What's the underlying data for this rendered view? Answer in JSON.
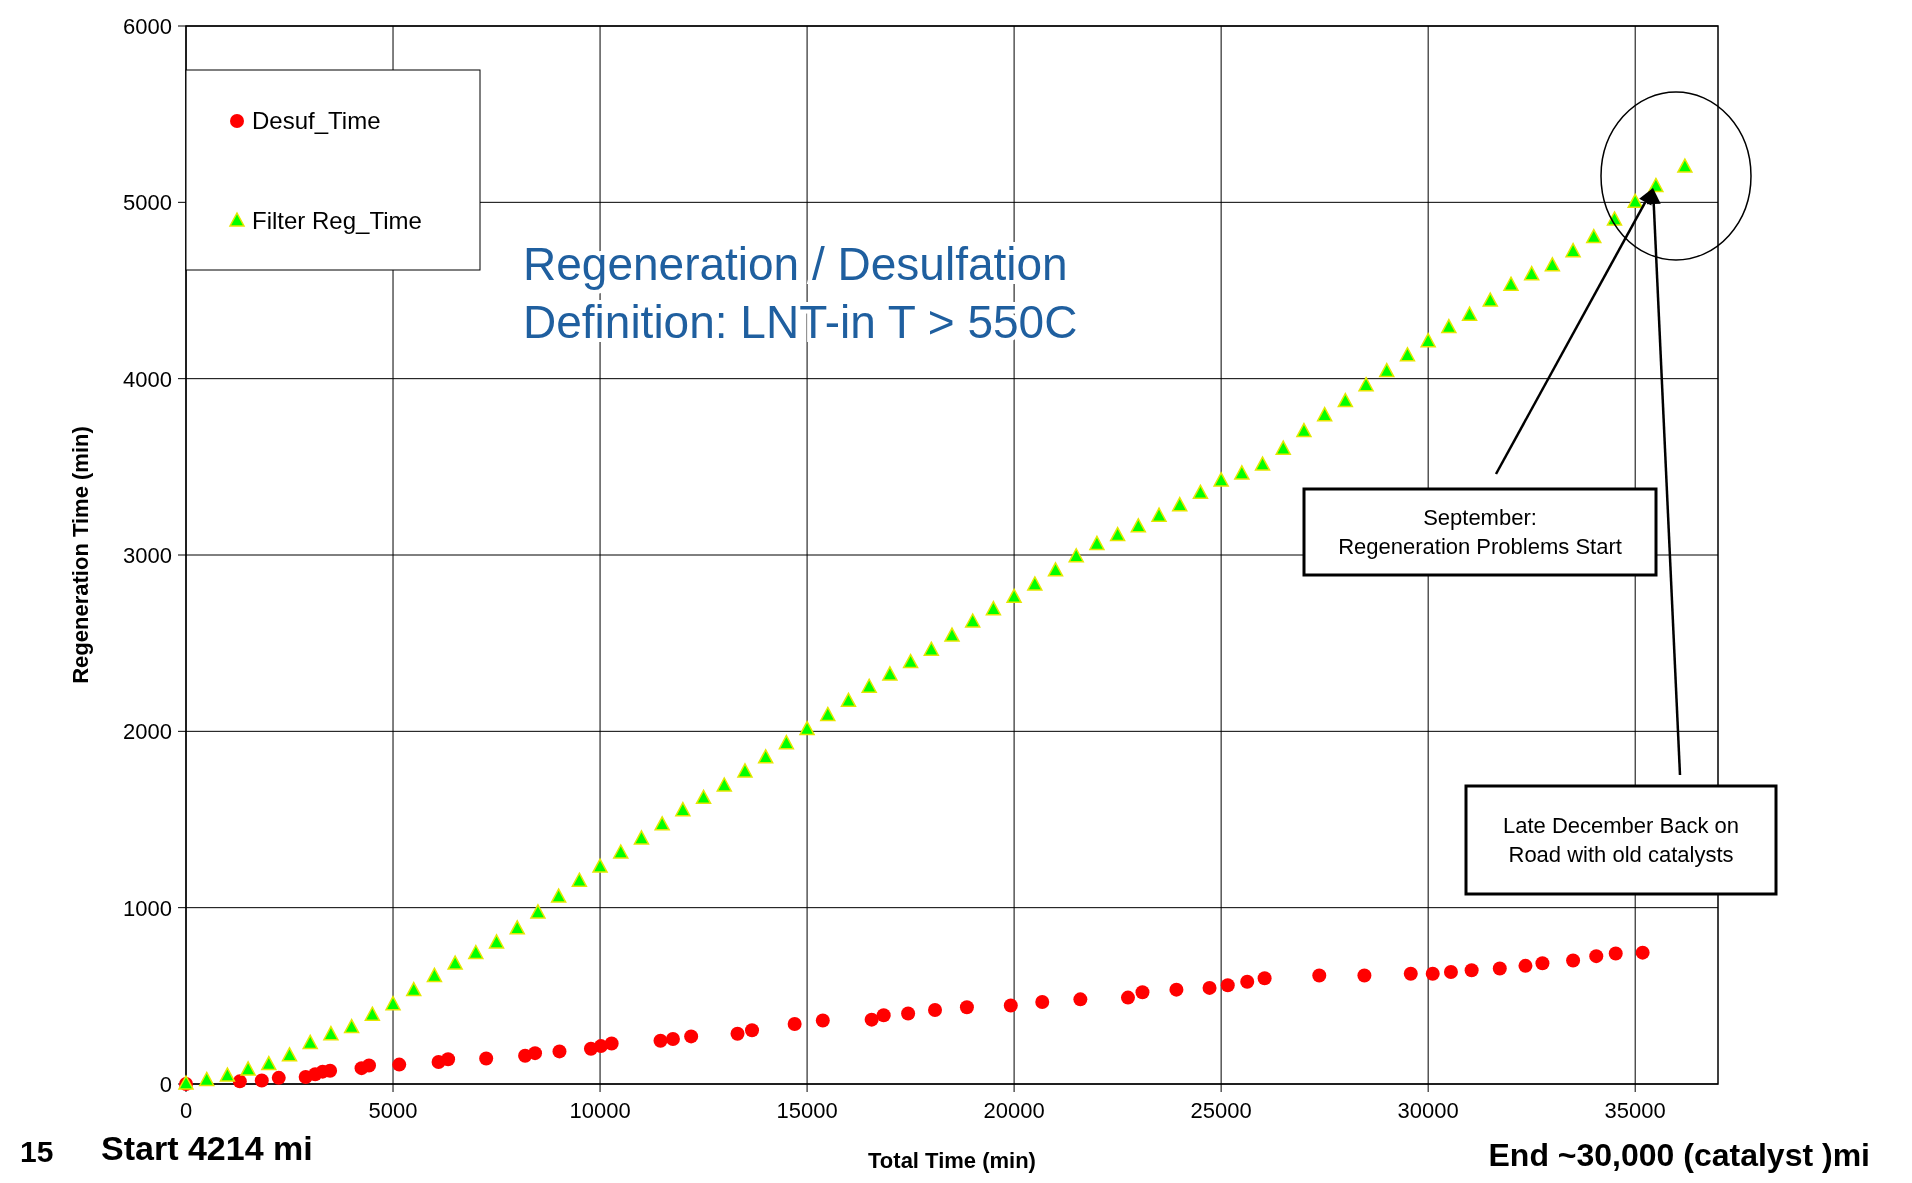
{
  "chart_data": {
    "type": "scatter",
    "xlabel": "Total Time (min)",
    "ylabel": "Regeneration Time (min)",
    "xlim": [
      0,
      37000
    ],
    "ylim": [
      0,
      6000
    ],
    "xticks": [
      0,
      5000,
      10000,
      15000,
      20000,
      25000,
      30000,
      35000
    ],
    "yticks": [
      0,
      1000,
      2000,
      3000,
      4000,
      5000,
      6000
    ],
    "grid": true,
    "legend": "top left",
    "series": [
      {
        "name": "Desuf_Time",
        "color": "#ff0000",
        "marker": "circle",
        "x": [
          0,
          1300,
          1830,
          2240,
          2890,
          3120,
          3300,
          3480,
          4240,
          4420,
          5150,
          6100,
          6330,
          7250,
          8190,
          8430,
          9020,
          9780,
          10020,
          10280,
          11460,
          11760,
          12200,
          13320,
          13670,
          14700,
          15380,
          16560,
          16850,
          17440,
          18090,
          18860,
          19920,
          20680,
          21600,
          22750,
          23100,
          23920,
          24720,
          25160,
          25630,
          26050,
          27370,
          28460,
          29580,
          30110,
          30550,
          31050,
          31730,
          32350,
          32760,
          33500,
          34060,
          34530,
          35180
        ],
        "values": [
          0,
          15,
          20,
          35,
          40,
          55,
          70,
          75,
          90,
          105,
          110,
          125,
          140,
          145,
          160,
          175,
          185,
          200,
          215,
          230,
          245,
          255,
          270,
          285,
          305,
          340,
          360,
          365,
          390,
          400,
          420,
          435,
          445,
          465,
          480,
          490,
          520,
          535,
          545,
          560,
          580,
          600,
          615,
          615,
          625,
          625,
          635,
          645,
          655,
          670,
          685,
          700,
          725,
          740,
          745
        ]
      },
      {
        "name": "Filter Reg_Time",
        "color": "#00ff00",
        "marker": "triangle",
        "x": [
          0,
          500,
          1000,
          1500,
          2000,
          2500,
          3000,
          3500,
          4000,
          4500,
          5000,
          5500,
          6000,
          6500,
          7000,
          7500,
          8000,
          8500,
          9000,
          9500,
          10000,
          10500,
          11000,
          11500,
          12000,
          12500,
          13000,
          13500,
          14000,
          14500,
          15000,
          15500,
          16000,
          16500,
          17000,
          17500,
          18000,
          18500,
          19000,
          19500,
          20000,
          20500,
          21000,
          21500,
          22000,
          22500,
          23000,
          23500,
          24000,
          24500,
          25000,
          25500,
          26000,
          26500,
          27000,
          27500,
          28000,
          28500,
          29000,
          29500,
          30000,
          30500,
          31000,
          31500,
          32000,
          32500,
          33000,
          33500,
          34000,
          34500,
          35000,
          35500,
          36200
        ],
        "values": [
          0,
          20,
          45,
          80,
          110,
          160,
          230,
          280,
          320,
          390,
          450,
          530,
          610,
          680,
          740,
          800,
          880,
          970,
          1060,
          1150,
          1230,
          1310,
          1390,
          1470,
          1550,
          1620,
          1690,
          1770,
          1850,
          1930,
          2010,
          2090,
          2170,
          2250,
          2320,
          2390,
          2460,
          2540,
          2620,
          2690,
          2760,
          2830,
          2910,
          2990,
          3060,
          3110,
          3160,
          3220,
          3280,
          3350,
          3420,
          3460,
          3510,
          3600,
          3700,
          3790,
          3870,
          3960,
          4040,
          4130,
          4210,
          4290,
          4360,
          4440,
          4530,
          4590,
          4640,
          4720,
          4800,
          4900,
          5000,
          5090,
          5200
        ]
      }
    ],
    "annotations": [
      "Regeneration / Desulfation\nDefinition: LNT-in T > 550C",
      "September:\nRegeneration Problems Start",
      "Late December Back on\nRoad with old catalysts",
      "15",
      "Start 4214 mi",
      "End ~30,000 (catalyst )mi"
    ]
  }
}
